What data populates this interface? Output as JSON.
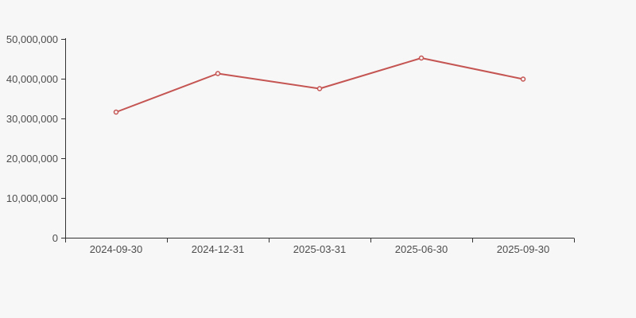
{
  "chart_data": {
    "type": "line",
    "title": "",
    "categories": [
      "2024-09-30",
      "2024-12-31",
      "2025-03-31",
      "2025-06-30",
      "2025-09-30"
    ],
    "series": [
      {
        "name": "value",
        "values": [
          31600000,
          41300000,
          37500000,
          45200000,
          39900000
        ]
      }
    ],
    "ylim": [
      0,
      50000000
    ],
    "y_ticks": [
      0,
      10000000,
      20000000,
      30000000,
      40000000,
      50000000
    ],
    "y_tick_labels": [
      "0",
      "10,000,000",
      "20,000,000",
      "30,000,000",
      "40,000,000",
      "50,000,000"
    ],
    "xlabel": "",
    "ylabel": "",
    "grid": false,
    "legend_position": "none",
    "marker": "hollow-circle",
    "colors": {
      "line": "#c45552",
      "marker_fill": "#f7f7f7",
      "axis": "#333333",
      "tick_label": "#4d4d4d",
      "background": "#f7f7f7"
    }
  }
}
